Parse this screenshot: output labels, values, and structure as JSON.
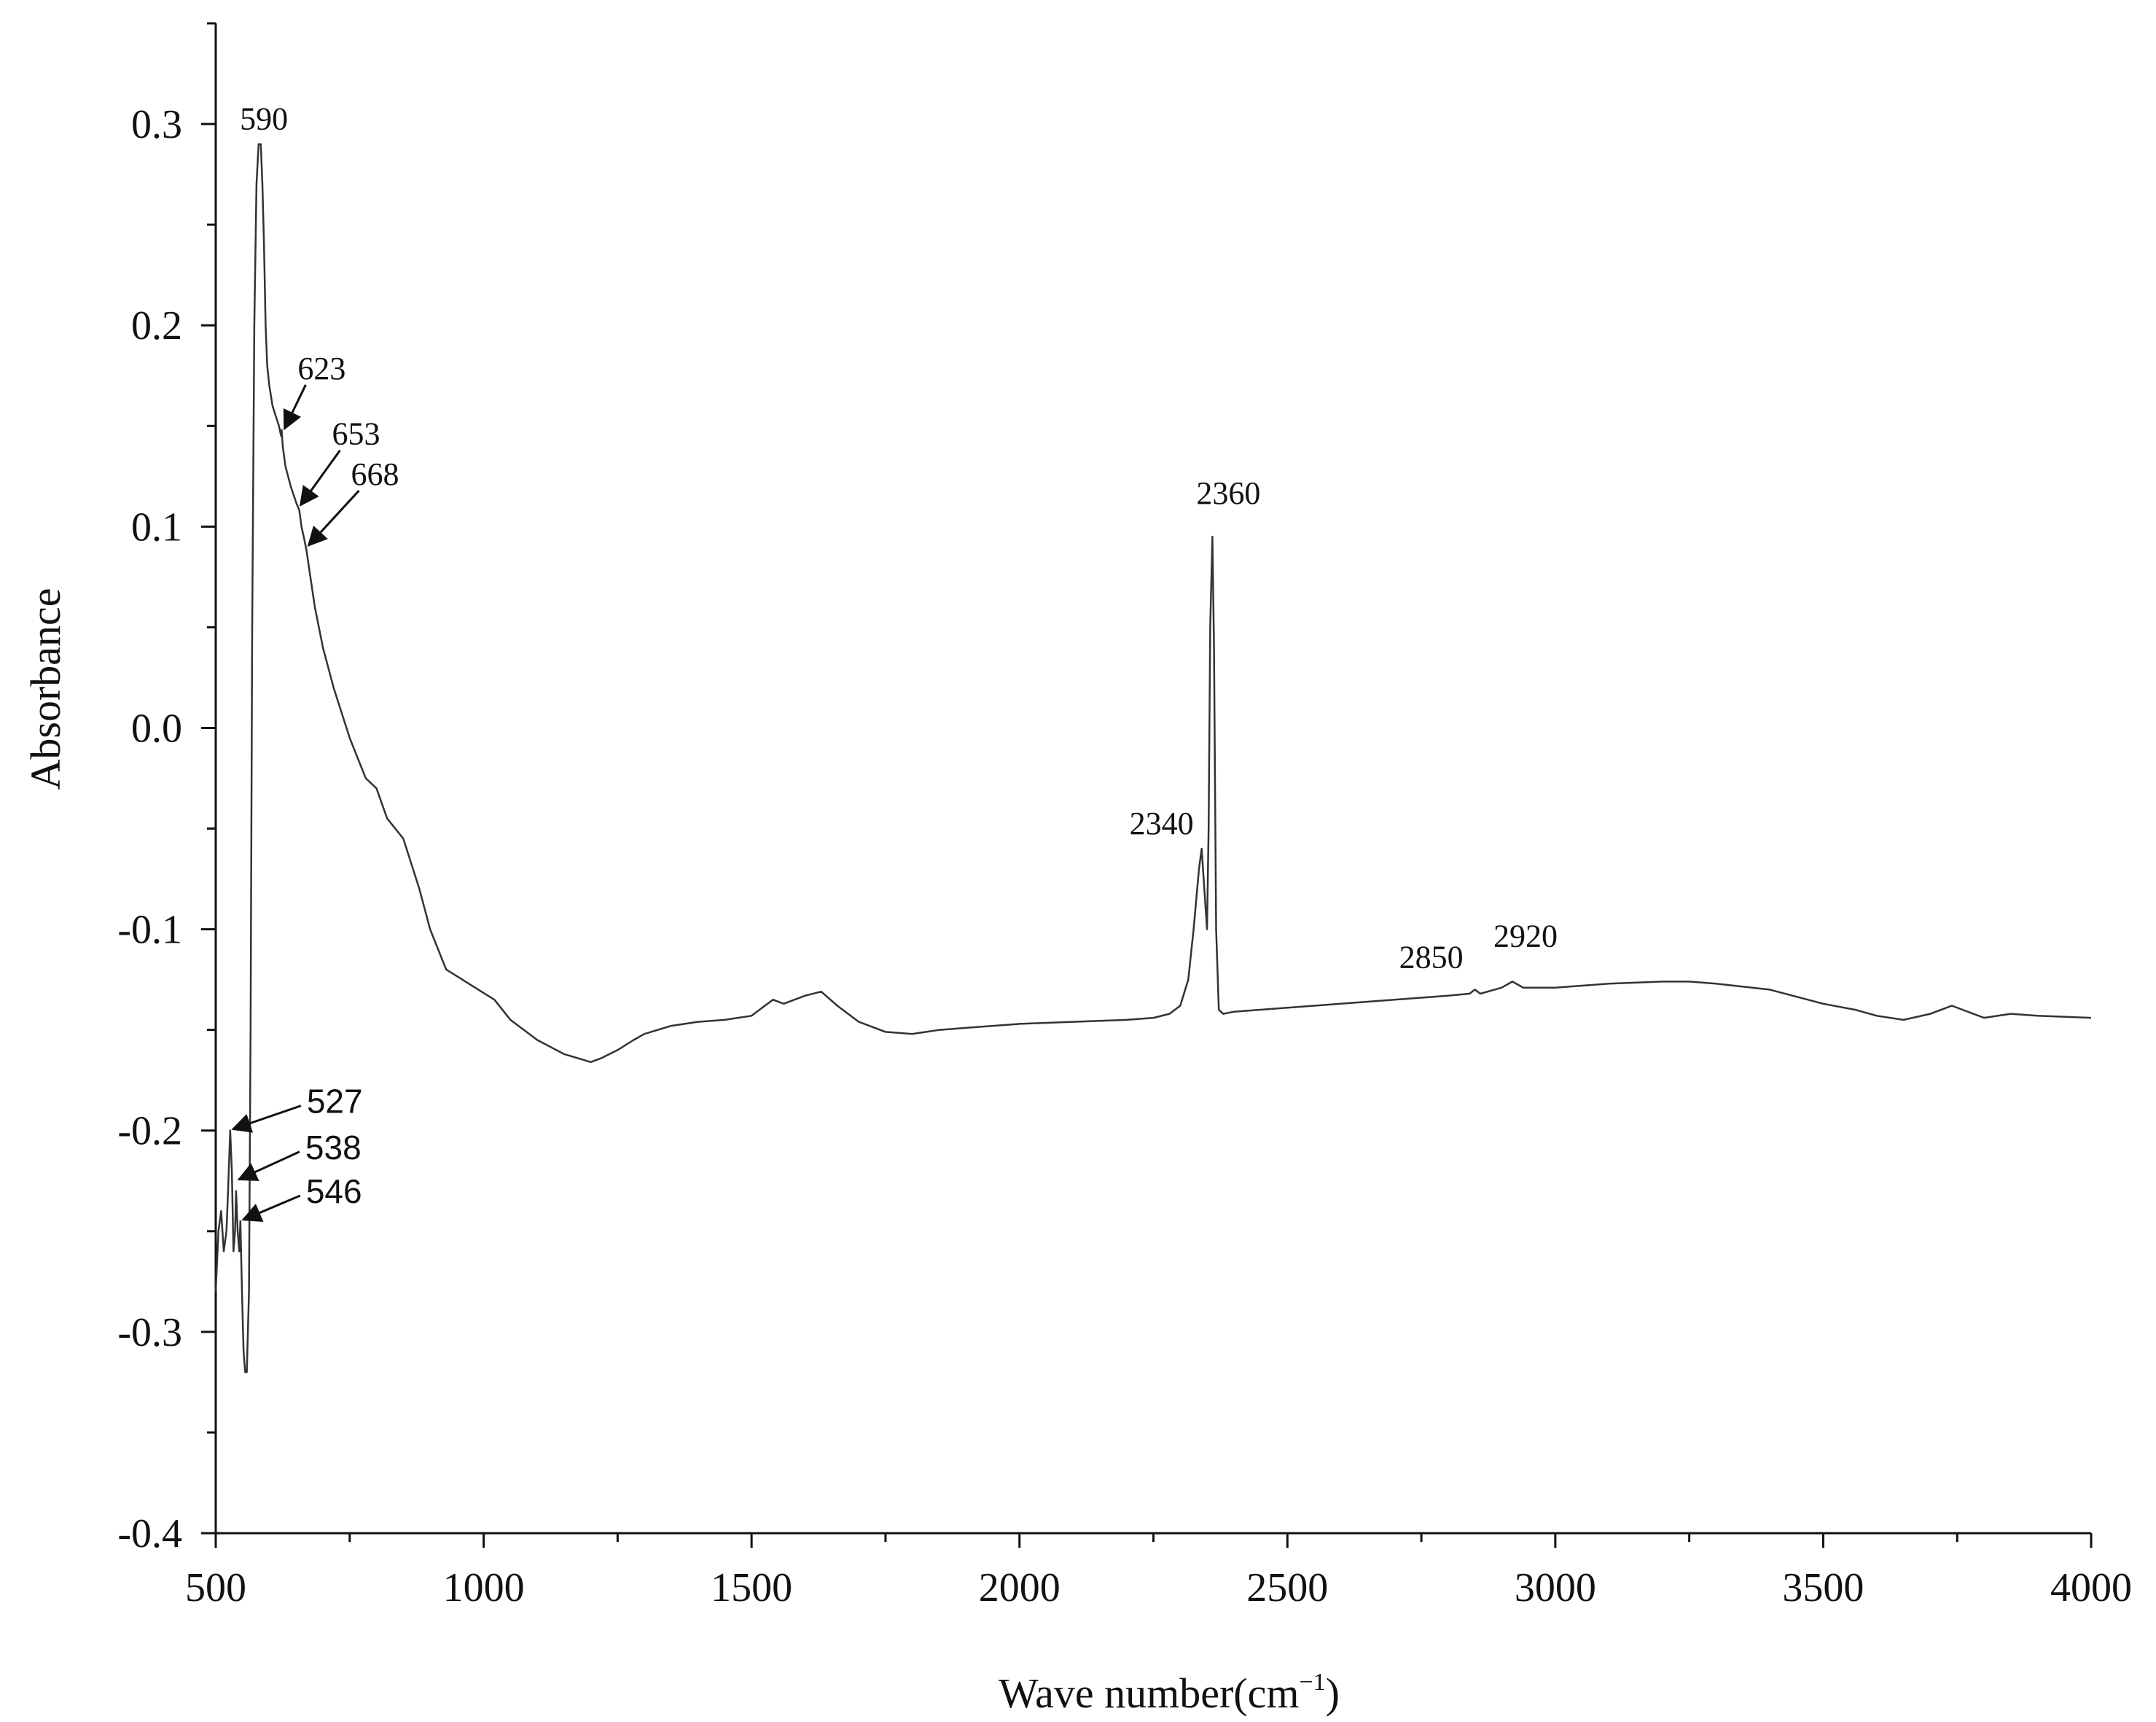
{
  "chart_data": {
    "type": "line",
    "title": "",
    "xlabel": "Wave number(cm⁻¹)",
    "xlabel_main": "Wave number(cm",
    "xlabel_sup": "−1",
    "xlabel_close": ")",
    "ylabel": "Absorbance",
    "xlim": [
      500,
      4000
    ],
    "ylim": [
      -0.4,
      0.35
    ],
    "grid": false,
    "xticks": [
      500,
      1000,
      1500,
      2000,
      2500,
      3000,
      3500,
      4000
    ],
    "xtick_labels": [
      "500",
      "1000",
      "1500",
      "2000",
      "2500",
      "3000",
      "3500",
      "4000"
    ],
    "yticks": [
      -0.4,
      -0.3,
      -0.2,
      -0.1,
      0.0,
      0.1,
      0.2,
      0.3
    ],
    "ytick_labels": [
      "-0.4",
      "-0.3",
      "-0.2",
      "-0.1",
      "0.0",
      "0.1",
      "0.2",
      "0.3"
    ],
    "line_color": "#333333",
    "series": [
      {
        "x": [
          500,
          505,
          510,
          515,
          520,
          523,
          527,
          530,
          533,
          536,
          538,
          541,
          544,
          546,
          549,
          552,
          555,
          558,
          562,
          565,
          568,
          572,
          576,
          580,
          584,
          587,
          590,
          593,
          596,
          600,
          606,
          612,
          618,
          622,
          623,
          625,
          630,
          640,
          650,
          653,
          656,
          660,
          665,
          668,
          670,
          675,
          685,
          700,
          720,
          750,
          780,
          800,
          820,
          850,
          880,
          900,
          930,
          960,
          990,
          1020,
          1050,
          1100,
          1150,
          1200,
          1220,
          1250,
          1280,
          1300,
          1350,
          1400,
          1450,
          1500,
          1540,
          1560,
          1600,
          1630,
          1660,
          1700,
          1750,
          1800,
          1850,
          1900,
          2000,
          2100,
          2200,
          2250,
          2280,
          2300,
          2315,
          2325,
          2335,
          2340,
          2345,
          2350,
          2353,
          2356,
          2360,
          2363,
          2367,
          2372,
          2380,
          2400,
          2500,
          2600,
          2700,
          2800,
          2840,
          2850,
          2860,
          2900,
          2920,
          2940,
          3000,
          3100,
          3200,
          3250,
          3300,
          3400,
          3500,
          3560,
          3600,
          3650,
          3700,
          3740,
          3800,
          3850,
          3900,
          4000
        ],
        "y": [
          -0.28,
          -0.25,
          -0.24,
          -0.26,
          -0.25,
          -0.23,
          -0.2,
          -0.22,
          -0.26,
          -0.25,
          -0.23,
          -0.25,
          -0.26,
          -0.245,
          -0.28,
          -0.31,
          -0.32,
          -0.32,
          -0.28,
          -0.15,
          0.05,
          0.2,
          0.27,
          0.29,
          0.29,
          0.27,
          0.24,
          0.2,
          0.18,
          0.17,
          0.16,
          0.155,
          0.15,
          0.145,
          0.148,
          0.14,
          0.13,
          0.12,
          0.112,
          0.11,
          0.108,
          0.1,
          0.094,
          0.09,
          0.087,
          0.078,
          0.06,
          0.04,
          0.02,
          -0.005,
          -0.025,
          -0.03,
          -0.045,
          -0.055,
          -0.08,
          -0.1,
          -0.12,
          -0.125,
          -0.13,
          -0.135,
          -0.145,
          -0.155,
          -0.162,
          -0.166,
          -0.164,
          -0.16,
          -0.155,
          -0.152,
          -0.148,
          -0.146,
          -0.145,
          -0.143,
          -0.135,
          -0.137,
          -0.133,
          -0.131,
          -0.138,
          -0.146,
          -0.151,
          -0.152,
          -0.15,
          -0.149,
          -0.147,
          -0.146,
          -0.145,
          -0.144,
          -0.142,
          -0.138,
          -0.125,
          -0.1,
          -0.07,
          -0.06,
          -0.08,
          -0.1,
          -0.05,
          0.05,
          0.095,
          0.04,
          -0.1,
          -0.14,
          -0.142,
          -0.141,
          -0.139,
          -0.137,
          -0.135,
          -0.133,
          -0.132,
          -0.13,
          -0.132,
          -0.129,
          -0.126,
          -0.129,
          -0.129,
          -0.127,
          -0.126,
          -0.126,
          -0.127,
          -0.13,
          -0.137,
          -0.14,
          -0.143,
          -0.145,
          -0.142,
          -0.138,
          -0.144,
          -0.142,
          -0.143,
          -0.144
        ]
      }
    ],
    "annotations": [
      {
        "label": "590",
        "x": 590,
        "y": 0.29,
        "arrow": false
      },
      {
        "label": "623",
        "x": 623,
        "y": 0.148,
        "arrow": true
      },
      {
        "label": "653",
        "x": 653,
        "y": 0.11,
        "arrow": true
      },
      {
        "label": "668",
        "x": 668,
        "y": 0.09,
        "arrow": true
      },
      {
        "label": "2360",
        "x": 2360,
        "y": 0.095,
        "arrow": false
      },
      {
        "label": "2340",
        "x": 2340,
        "y": -0.06,
        "arrow": false
      },
      {
        "label": "2850",
        "x": 2850,
        "y": -0.13,
        "arrow": false
      },
      {
        "label": "2920",
        "x": 2920,
        "y": -0.126,
        "arrow": false
      },
      {
        "label": "527",
        "x": 527,
        "y": -0.2,
        "arrow": true
      },
      {
        "label": "538",
        "x": 538,
        "y": -0.225,
        "arrow": true
      },
      {
        "label": "546",
        "x": 546,
        "y": -0.245,
        "arrow": true
      }
    ]
  }
}
